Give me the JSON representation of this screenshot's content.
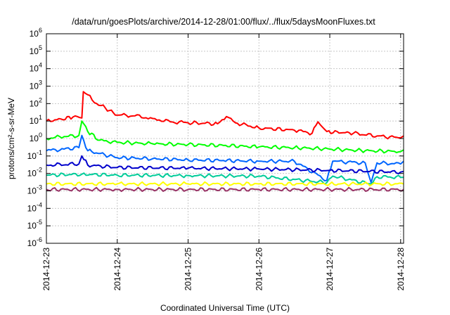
{
  "chart_data": {
    "type": "line",
    "title": "/data/run/goesPlots/archive/2014-12-28/01:00/flux/../flux/5daysMoonFluxes.txt",
    "xlabel": "Coordinated Universal Time (UTC)",
    "ylabel": "protons/cm²-s-sr-MeV",
    "yscale": "log",
    "ylim": [
      1e-06,
      1000000
    ],
    "xlim": [
      "2014-12-23T00:00",
      "2014-12-28T01:00"
    ],
    "grid": true,
    "x_ticks": [
      "2014-12-23",
      "2014-12-24",
      "2014-12-25",
      "2014-12-26",
      "2014-12-27",
      "2014-12-28"
    ],
    "y_ticks": [
      {
        "base": "10",
        "exp": "-6"
      },
      {
        "base": "10",
        "exp": "-5"
      },
      {
        "base": "10",
        "exp": "-4"
      },
      {
        "base": "10",
        "exp": "-3"
      },
      {
        "base": "10",
        "exp": "-2"
      },
      {
        "base": "10",
        "exp": "-1"
      },
      {
        "base": "10",
        "exp": "0"
      },
      {
        "base": "10",
        "exp": "1"
      },
      {
        "base": "10",
        "exp": "2"
      },
      {
        "base": "10",
        "exp": "3"
      },
      {
        "base": "10",
        "exp": "4"
      },
      {
        "base": "10",
        "exp": "5"
      },
      {
        "base": "10",
        "exp": "6"
      }
    ],
    "series": [
      {
        "color": "#ff0000",
        "points": [
          [
            "2014-12-23T00:00",
            10
          ],
          [
            "2014-12-23T05:00",
            13
          ],
          [
            "2014-12-23T09:00",
            17
          ],
          [
            "2014-12-23T12:00",
            15
          ],
          [
            "2014-12-23T12:30",
            480
          ],
          [
            "2014-12-23T14:00",
            320
          ],
          [
            "2014-12-23T17:00",
            100
          ],
          [
            "2014-12-23T20:00",
            55
          ],
          [
            "2014-12-24T00:00",
            22
          ],
          [
            "2014-12-24T06:00",
            20
          ],
          [
            "2014-12-24T12:00",
            14
          ],
          [
            "2014-12-24T18:00",
            9
          ],
          [
            "2014-12-25T00:00",
            8
          ],
          [
            "2014-12-25T10:00",
            7
          ],
          [
            "2014-12-25T13:00",
            18
          ],
          [
            "2014-12-25T16:00",
            8
          ],
          [
            "2014-12-26T00:00",
            4
          ],
          [
            "2014-12-26T12:00",
            3
          ],
          [
            "2014-12-26T18:00",
            2
          ],
          [
            "2014-12-26T20:00",
            9
          ],
          [
            "2014-12-26T23:00",
            2.5
          ],
          [
            "2014-12-27T08:00",
            2
          ],
          [
            "2014-12-27T16:00",
            1.4
          ],
          [
            "2014-12-28T00:00",
            1.1
          ],
          [
            "2014-12-28T01:00",
            1.4
          ]
        ]
      },
      {
        "color": "#00ff00",
        "points": [
          [
            "2014-12-23T00:00",
            1.0
          ],
          [
            "2014-12-23T06:00",
            1.3
          ],
          [
            "2014-12-23T11:00",
            1.5
          ],
          [
            "2014-12-23T12:00",
            10
          ],
          [
            "2014-12-23T14:00",
            2.5
          ],
          [
            "2014-12-23T18:00",
            0.8
          ],
          [
            "2014-12-24T00:00",
            0.6
          ],
          [
            "2014-12-24T12:00",
            0.5
          ],
          [
            "2014-12-25T00:00",
            0.45
          ],
          [
            "2014-12-25T12:00",
            0.4
          ],
          [
            "2014-12-26T00:00",
            0.33
          ],
          [
            "2014-12-26T12:00",
            0.3
          ],
          [
            "2014-12-27T00:00",
            0.25
          ],
          [
            "2014-12-27T12:00",
            0.2
          ],
          [
            "2014-12-28T00:00",
            0.18
          ],
          [
            "2014-12-28T01:00",
            0.22
          ]
        ]
      },
      {
        "color": "#0066ff",
        "points": [
          [
            "2014-12-23T00:00",
            0.2
          ],
          [
            "2014-12-23T06:00",
            0.25
          ],
          [
            "2014-12-23T11:00",
            0.3
          ],
          [
            "2014-12-23T12:00",
            1.5
          ],
          [
            "2014-12-23T14:00",
            0.2
          ],
          [
            "2014-12-24T00:00",
            0.08
          ],
          [
            "2014-12-24T12:00",
            0.07
          ],
          [
            "2014-12-25T00:00",
            0.06
          ],
          [
            "2014-12-25T12:00",
            0.055
          ],
          [
            "2014-12-26T00:00",
            0.05
          ],
          [
            "2014-12-26T12:00",
            0.05
          ],
          [
            "2014-12-26T23:00",
            0.004
          ],
          [
            "2014-12-27T01:00",
            0.05
          ],
          [
            "2014-12-27T12:00",
            0.04
          ],
          [
            "2014-12-27T14:00",
            0.003
          ],
          [
            "2014-12-27T16:00",
            0.04
          ],
          [
            "2014-12-28T00:00",
            0.035
          ],
          [
            "2014-12-28T01:00",
            0.05
          ]
        ]
      },
      {
        "color": "#0000cc",
        "points": [
          [
            "2014-12-23T00:00",
            0.03
          ],
          [
            "2014-12-23T11:00",
            0.035
          ],
          [
            "2014-12-23T12:00",
            0.1
          ],
          [
            "2014-12-23T14:00",
            0.03
          ],
          [
            "2014-12-24T00:00",
            0.022
          ],
          [
            "2014-12-25T00:00",
            0.02
          ],
          [
            "2014-12-26T00:00",
            0.018
          ],
          [
            "2014-12-27T00:00",
            0.015
          ],
          [
            "2014-12-28T00:00",
            0.012
          ],
          [
            "2014-12-28T01:00",
            0.013
          ]
        ]
      },
      {
        "color": "#00cc99",
        "points": [
          [
            "2014-12-23T00:00",
            0.008
          ],
          [
            "2014-12-23T12:00",
            0.009
          ],
          [
            "2014-12-24T00:00",
            0.008
          ],
          [
            "2014-12-25T00:00",
            0.0075
          ],
          [
            "2014-12-26T00:00",
            0.007
          ],
          [
            "2014-12-26T23:00",
            0.003
          ],
          [
            "2014-12-27T01:00",
            0.007
          ],
          [
            "2014-12-27T14:00",
            0.0025
          ],
          [
            "2014-12-27T16:00",
            0.0065
          ],
          [
            "2014-12-28T00:00",
            0.006
          ],
          [
            "2014-12-28T01:00",
            0.006
          ]
        ]
      },
      {
        "color": "#ffff00",
        "points": [
          [
            "2014-12-23T00:00",
            0.0025
          ],
          [
            "2014-12-24T00:00",
            0.0025
          ],
          [
            "2014-12-25T00:00",
            0.0025
          ],
          [
            "2014-12-26T00:00",
            0.0025
          ],
          [
            "2014-12-27T00:00",
            0.0025
          ],
          [
            "2014-12-28T01:00",
            0.0025
          ]
        ]
      },
      {
        "color": "#993366",
        "points": [
          [
            "2014-12-23T00:00",
            0.0012
          ],
          [
            "2014-12-24T00:00",
            0.0012
          ],
          [
            "2014-12-25T00:00",
            0.0012
          ],
          [
            "2014-12-26T00:00",
            0.0012
          ],
          [
            "2014-12-27T00:00",
            0.0012
          ],
          [
            "2014-12-28T01:00",
            0.0012
          ]
        ]
      }
    ]
  }
}
